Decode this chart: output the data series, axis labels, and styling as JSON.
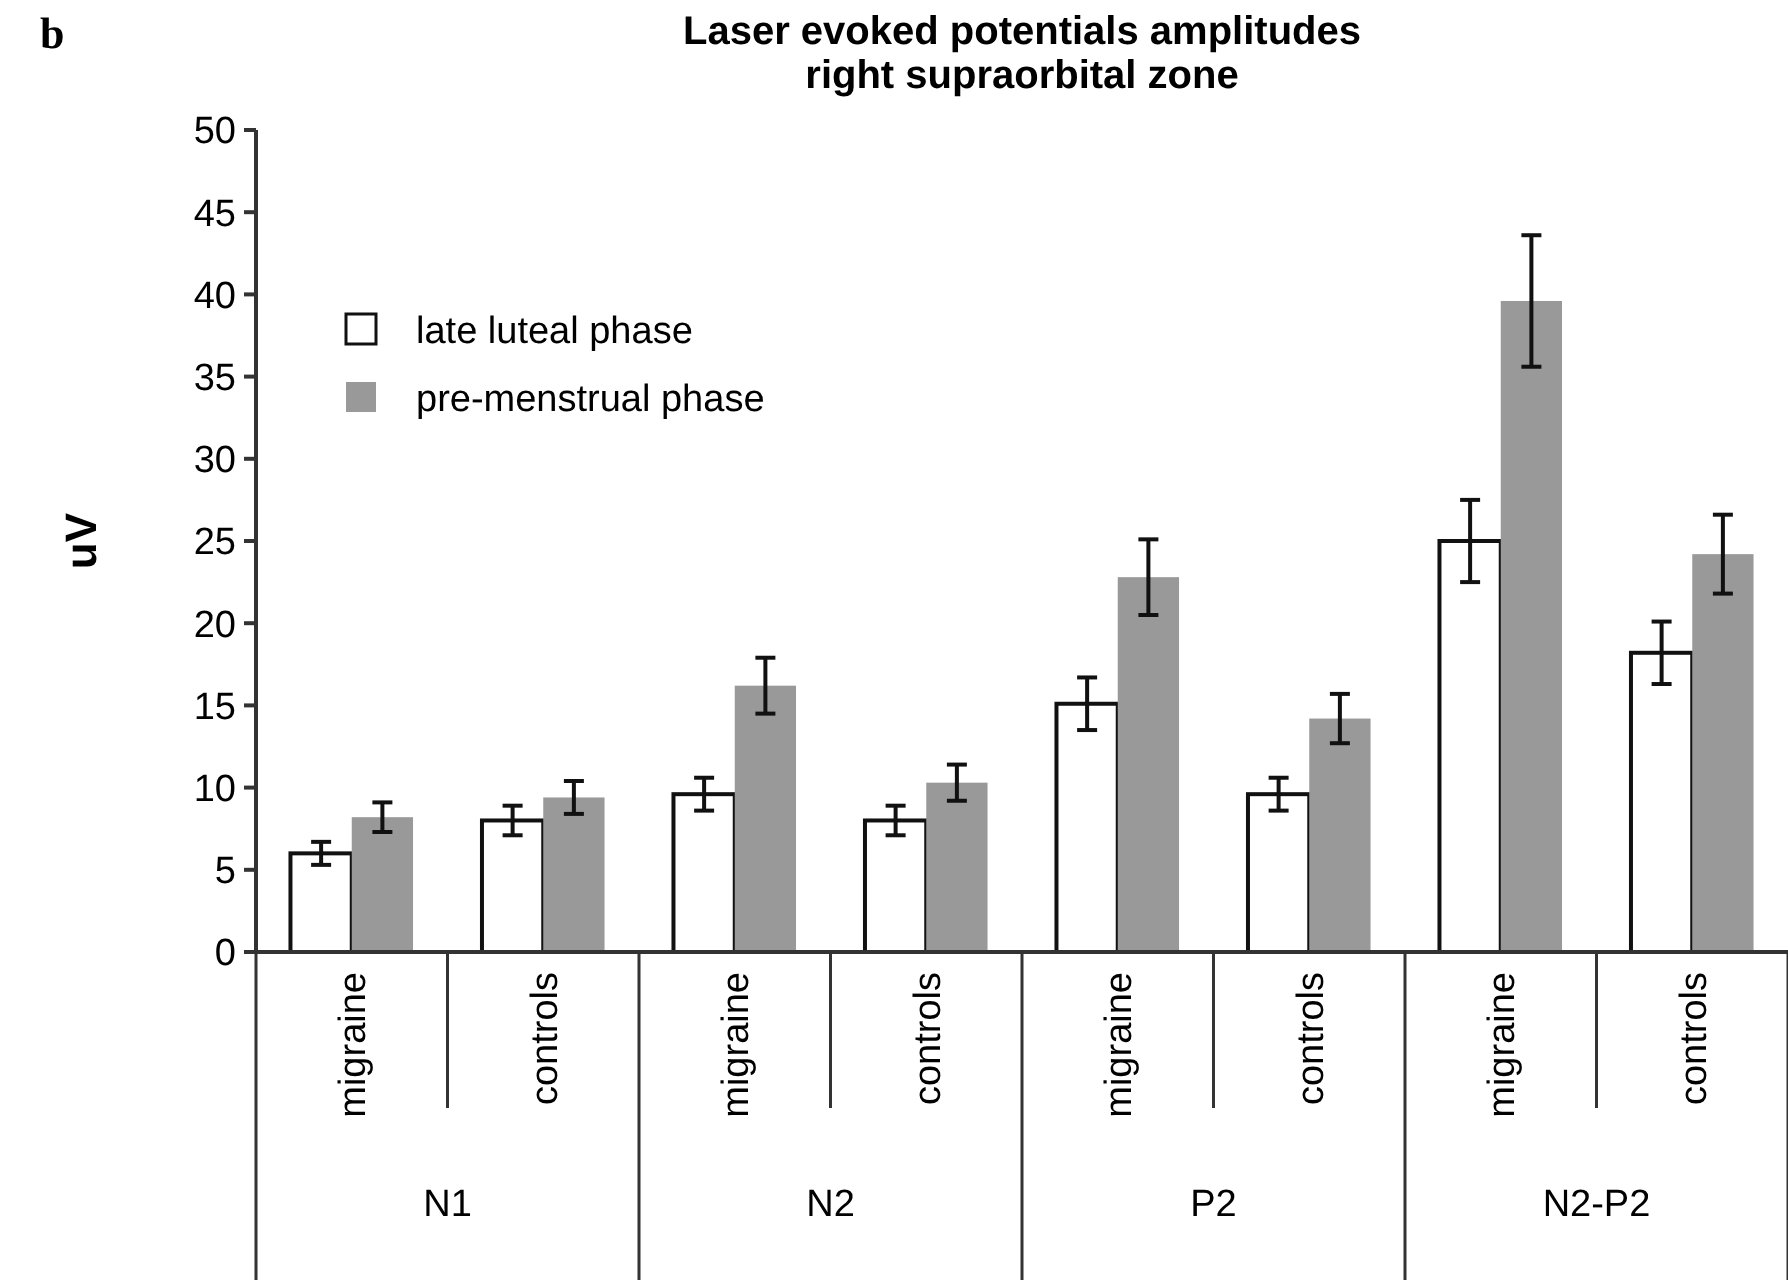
{
  "chart_data": {
    "type": "bar",
    "title": "Laser evoked potentials amplitudes",
    "subtitle": "right supraorbital zone",
    "ylabel": "uV",
    "categories": [
      "migraine",
      "controls",
      "migraine",
      "controls",
      "migraine",
      "controls",
      "migraine",
      "controls"
    ],
    "annotations": [
      "b",
      "N1",
      "N2",
      "P2",
      "N2-P2"
    ],
    "series": [
      {
        "name": "late luteal phase",
        "color": "#ffffff",
        "values": [
          6.0,
          8.0,
          9.6,
          8.0,
          15.1,
          9.6,
          25.0,
          18.2
        ],
        "errors": [
          0.7,
          0.9,
          1.0,
          0.9,
          1.6,
          1.0,
          2.5,
          1.9
        ]
      },
      {
        "name": "pre-menstrual phase",
        "color": "#999999",
        "values": [
          8.2,
          9.4,
          16.2,
          10.3,
          22.8,
          14.2,
          39.6,
          24.2
        ],
        "errors": [
          0.9,
          1.0,
          1.7,
          1.1,
          2.3,
          1.5,
          4.0,
          2.4
        ]
      }
    ],
    "ylim": [
      0,
      50
    ],
    "yticks": [
      0,
      5,
      10,
      15,
      20,
      25,
      30,
      35,
      40,
      45,
      50
    ],
    "legend": "top left",
    "grid": false
  }
}
